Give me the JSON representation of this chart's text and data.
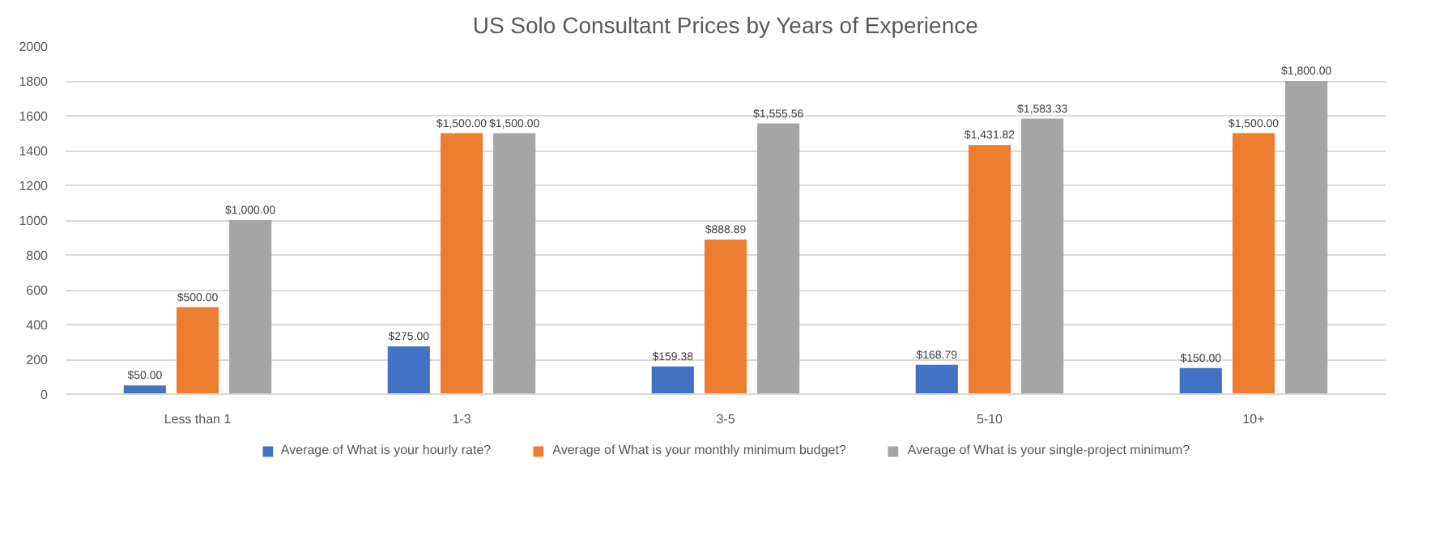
{
  "chart_data": {
    "type": "bar",
    "title": "US Solo Consultant Prices by Years of Experience",
    "categories": [
      "Less than 1",
      "1-3",
      "3-5",
      "5-10",
      "10+"
    ],
    "series": [
      {
        "name": "Average of What is your hourly rate?",
        "color": "#4472c4",
        "values": [
          50,
          275,
          159.38,
          168.79,
          150
        ],
        "value_labels": [
          "$50.00",
          "$275.00",
          "$159.38",
          "$168.79",
          "$150.00"
        ]
      },
      {
        "name": "Average of What is your monthly minimum budget?",
        "color": "#ed7d31",
        "values": [
          500,
          1500,
          888.89,
          1431.82,
          1500
        ],
        "value_labels": [
          "$500.00",
          "$1,500.00",
          "$888.89",
          "$1,431.82",
          "$1,500.00"
        ]
      },
      {
        "name": "Average of What is your single-project minimum?",
        "color": "#a5a5a5",
        "values": [
          1000,
          1500,
          1555.56,
          1583.33,
          1800
        ],
        "value_labels": [
          "$1,000.00",
          "$1,500.00",
          "$1,555.56",
          "$1,583.33",
          "$1,800.00"
        ]
      }
    ],
    "ylim": [
      0,
      2000
    ],
    "yticks": [
      0,
      200,
      400,
      600,
      800,
      1000,
      1200,
      1400,
      1600,
      1800,
      2000
    ],
    "grid": "y",
    "legend": "bottom"
  }
}
